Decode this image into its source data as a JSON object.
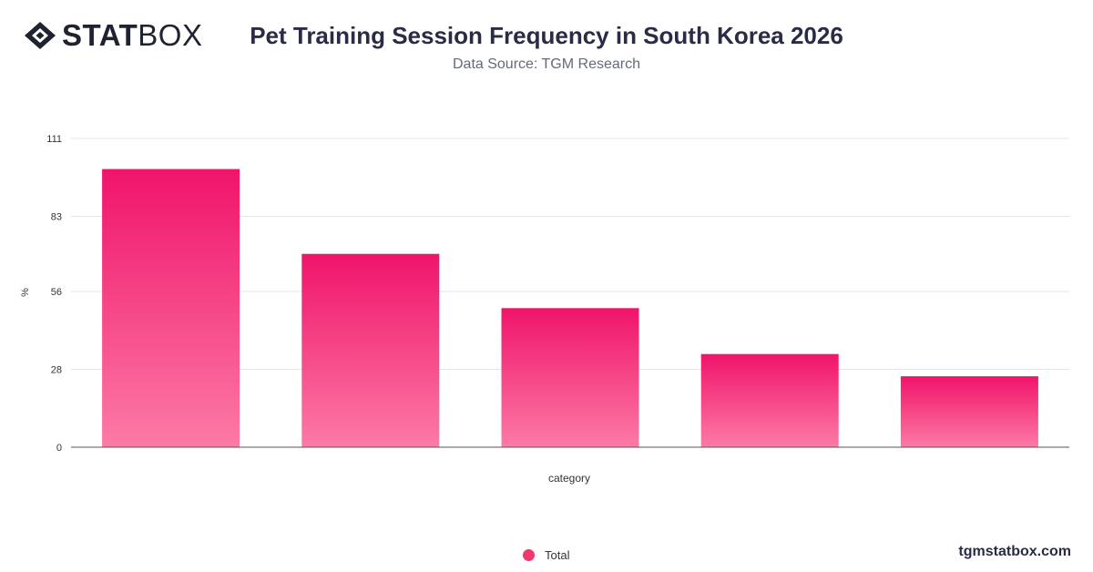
{
  "brand": {
    "bold": "STAT",
    "light": "BOX"
  },
  "header": {
    "title": "Pet Training Session Frequency in South Korea 2026",
    "subtitle": "Data Source: TGM Research"
  },
  "chart_data": {
    "type": "bar",
    "categories": [
      "",
      "",
      "",
      "",
      ""
    ],
    "series": [
      {
        "name": "Total",
        "values": [
          100,
          69.5,
          50,
          33.5,
          25.5
        ]
      }
    ],
    "xlabel": "category",
    "ylabel": "%",
    "yticks": [
      0,
      28,
      56,
      83,
      111
    ],
    "ylim": [
      0,
      111
    ],
    "grid": true,
    "legend": "bottom-center",
    "bar_gradient": [
      "#f0146a",
      "#fc7aa6"
    ]
  },
  "legend": {
    "label": "Total",
    "color": "#f0386f"
  },
  "footer": {
    "watermark": "tgmstatbox.com"
  }
}
